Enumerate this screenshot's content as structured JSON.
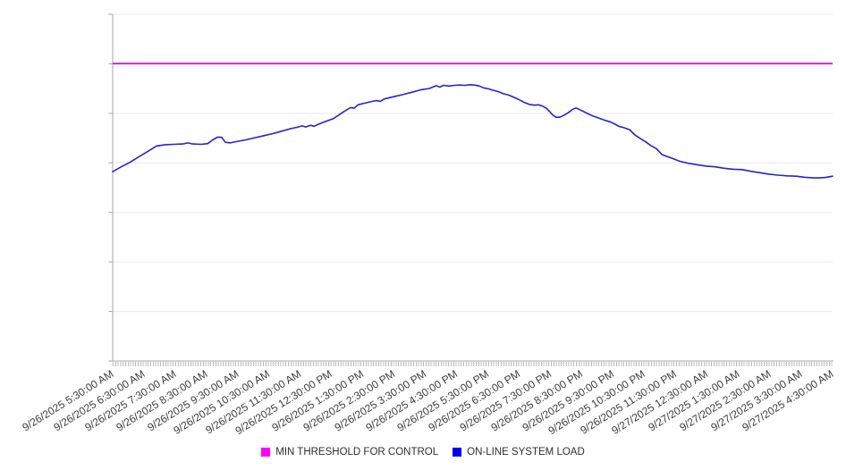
{
  "chart_data": {
    "type": "line",
    "title": "",
    "x_axis": {
      "tick_labels": [
        "9/26/2025 5:30:00 AM",
        "9/26/2025 6:30:00 AM",
        "9/26/2025 7:30:00 AM",
        "9/26/2025 8:30:00 AM",
        "9/26/2025 9:30:00 AM",
        "9/26/2025 10:30:00 AM",
        "9/26/2025 11:30:00 AM",
        "9/26/2025 12:30:00 PM",
        "9/26/2025 1:30:00 PM",
        "9/26/2025 2:30:00 PM",
        "9/26/2025 3:30:00 PM",
        "9/26/2025 4:30:00 PM",
        "9/26/2025 5:30:00 PM",
        "9/26/2025 6:30:00 PM",
        "9/26/2025 7:30:00 PM",
        "9/26/2025 8:30:00 PM",
        "9/26/2025 9:30:00 PM",
        "9/26/2025 10:30:00 PM",
        "9/26/2025 11:30:00 PM",
        "9/27/2025 12:30:00 AM",
        "9/27/2025 1:30:00 AM",
        "9/27/2025 2:30:00 AM",
        "9/27/2025 3:30:00 AM",
        "9/27/2025 4:30:00 AM"
      ],
      "label_interval_minutes": 60,
      "minor_tick_interval_minutes": 5,
      "label_rotation_deg": -32,
      "span_minutes": 1380
    },
    "y_axis": {
      "labels_visible": false,
      "gridline_count": 8,
      "scale_note": "no y-axis tick labels shown in source; series values below are relative 0-100 (percent of plot height above x-axis)"
    },
    "legend_position": "bottom",
    "series": [
      {
        "name": "MIN THRESHOLD FOR CONTROL",
        "style": "horizontal-threshold",
        "color": "#e51ce5",
        "value": 85.8
      },
      {
        "name": "ON-LINE SYSTEM LOAD",
        "style": "line",
        "color": "#2424cb",
        "points": [
          [
            0,
            54.6
          ],
          [
            15,
            55.9
          ],
          [
            33,
            57.3
          ],
          [
            50,
            58.9
          ],
          [
            67,
            60.4
          ],
          [
            84,
            62.0
          ],
          [
            101,
            62.4
          ],
          [
            118,
            62.5
          ],
          [
            135,
            62.6
          ],
          [
            144,
            62.9
          ],
          [
            153,
            62.6
          ],
          [
            170,
            62.5
          ],
          [
            182,
            62.7
          ],
          [
            192,
            63.8
          ],
          [
            201,
            64.6
          ],
          [
            209,
            64.5
          ],
          [
            216,
            63.1
          ],
          [
            225,
            62.9
          ],
          [
            238,
            63.3
          ],
          [
            255,
            63.8
          ],
          [
            273,
            64.4
          ],
          [
            290,
            65.0
          ],
          [
            307,
            65.6
          ],
          [
            324,
            66.3
          ],
          [
            341,
            67.0
          ],
          [
            353,
            67.4
          ],
          [
            363,
            67.8
          ],
          [
            370,
            67.5
          ],
          [
            379,
            68.0
          ],
          [
            386,
            67.7
          ],
          [
            396,
            68.4
          ],
          [
            410,
            69.2
          ],
          [
            423,
            69.9
          ],
          [
            444,
            72.0
          ],
          [
            456,
            73.1
          ],
          [
            463,
            72.9
          ],
          [
            470,
            73.9
          ],
          [
            487,
            74.5
          ],
          [
            504,
            75.1
          ],
          [
            513,
            74.9
          ],
          [
            521,
            75.6
          ],
          [
            538,
            76.2
          ],
          [
            555,
            76.8
          ],
          [
            573,
            77.5
          ],
          [
            590,
            78.2
          ],
          [
            607,
            78.6
          ],
          [
            620,
            79.4
          ],
          [
            627,
            79.0
          ],
          [
            634,
            79.5
          ],
          [
            645,
            79.3
          ],
          [
            655,
            79.5
          ],
          [
            665,
            79.6
          ],
          [
            675,
            79.5
          ],
          [
            686,
            79.7
          ],
          [
            694,
            79.6
          ],
          [
            703,
            79.3
          ],
          [
            711,
            78.8
          ],
          [
            720,
            78.5
          ],
          [
            729,
            78.1
          ],
          [
            739,
            77.7
          ],
          [
            749,
            77.1
          ],
          [
            759,
            76.7
          ],
          [
            770,
            76.0
          ],
          [
            780,
            75.3
          ],
          [
            790,
            74.5
          ],
          [
            799,
            74.0
          ],
          [
            809,
            73.8
          ],
          [
            816,
            73.9
          ],
          [
            824,
            73.5
          ],
          [
            831,
            72.9
          ],
          [
            838,
            71.9
          ],
          [
            843,
            71.0
          ],
          [
            850,
            70.3
          ],
          [
            857,
            70.3
          ],
          [
            864,
            70.8
          ],
          [
            873,
            71.6
          ],
          [
            881,
            72.5
          ],
          [
            888,
            73.0
          ],
          [
            895,
            72.5
          ],
          [
            902,
            72.0
          ],
          [
            910,
            71.4
          ],
          [
            920,
            70.7
          ],
          [
            933,
            70.0
          ],
          [
            944,
            69.4
          ],
          [
            955,
            68.9
          ],
          [
            963,
            68.3
          ],
          [
            970,
            67.7
          ],
          [
            980,
            67.3
          ],
          [
            991,
            66.7
          ],
          [
            1001,
            65.2
          ],
          [
            1011,
            64.2
          ],
          [
            1022,
            63.2
          ],
          [
            1032,
            62.1
          ],
          [
            1042,
            61.3
          ],
          [
            1053,
            59.5
          ],
          [
            1070,
            58.6
          ],
          [
            1087,
            57.6
          ],
          [
            1104,
            57.0
          ],
          [
            1121,
            56.6
          ],
          [
            1138,
            56.2
          ],
          [
            1155,
            56.0
          ],
          [
            1172,
            55.6
          ],
          [
            1190,
            55.3
          ],
          [
            1207,
            55.2
          ],
          [
            1224,
            54.7
          ],
          [
            1241,
            54.3
          ],
          [
            1258,
            53.9
          ],
          [
            1275,
            53.6
          ],
          [
            1293,
            53.4
          ],
          [
            1310,
            53.3
          ],
          [
            1327,
            53.0
          ],
          [
            1344,
            52.8
          ],
          [
            1354,
            52.8
          ],
          [
            1365,
            52.9
          ],
          [
            1380,
            53.3
          ]
        ]
      }
    ]
  },
  "legend": {
    "threshold_label": "MIN THRESHOLD FOR CONTROL",
    "load_label": "ON-LINE SYSTEM LOAD",
    "threshold_swatch_color": "#ff00ff",
    "load_swatch_color": "#0000f2"
  },
  "colors": {
    "gridline": "#e9e9e9",
    "axis": "#a5a5a5",
    "minor_tick": "#b8b8b8",
    "x_label_text": "#3d3d3d",
    "background": "#ffffff"
  }
}
